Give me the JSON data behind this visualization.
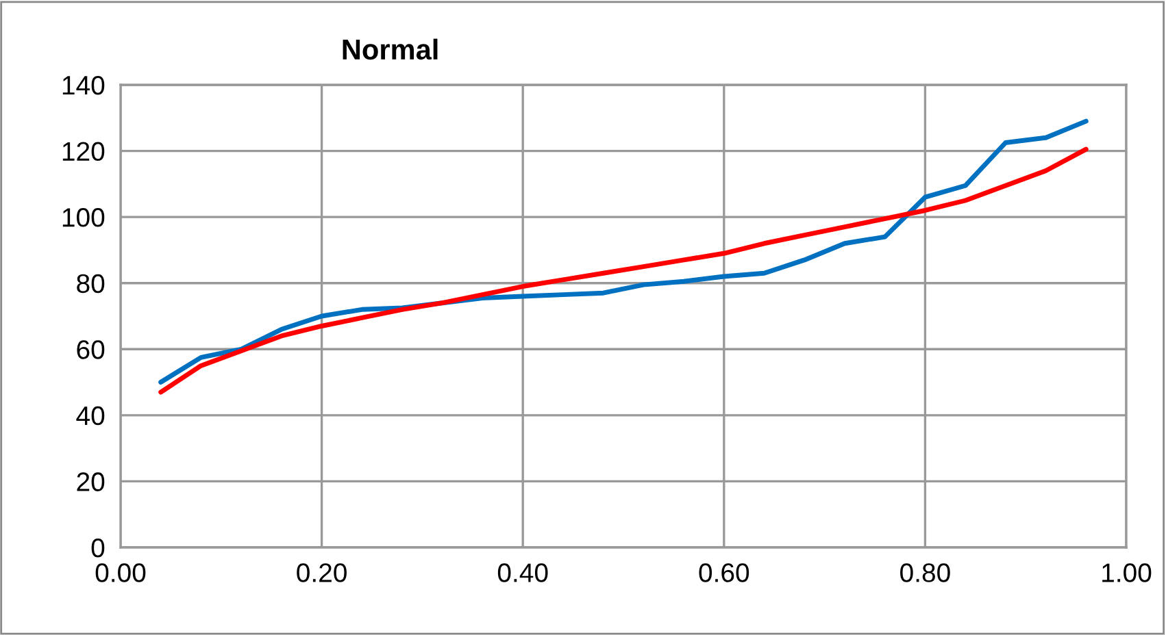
{
  "chart_data": {
    "type": "line",
    "title": "Normal",
    "x": [
      0.04,
      0.08,
      0.12,
      0.16,
      0.2,
      0.24,
      0.28,
      0.32,
      0.36,
      0.4,
      0.44,
      0.48,
      0.52,
      0.56,
      0.6,
      0.64,
      0.68,
      0.72,
      0.76,
      0.8,
      0.84,
      0.88,
      0.92,
      0.96
    ],
    "series": [
      {
        "color": "#0070c0",
        "values": [
          50,
          57.5,
          60,
          66,
          70,
          72,
          72.5,
          74,
          75.5,
          76,
          76.5,
          77,
          79.5,
          80.5,
          82,
          83,
          87,
          92,
          94,
          106,
          109.5,
          122.5,
          124,
          129
        ]
      },
      {
        "color": "#ff0000",
        "values": [
          47,
          55,
          59.5,
          64,
          67,
          69.5,
          72,
          74,
          76.5,
          79,
          81,
          83,
          85,
          87,
          89,
          92,
          94.5,
          97,
          99.5,
          102,
          105,
          109.5,
          114,
          120.5
        ]
      }
    ],
    "xlim": [
      0,
      1
    ],
    "xticks": [
      {
        "value": 0,
        "label": "0.00"
      },
      {
        "value": 0.2,
        "label": "0.20"
      },
      {
        "value": 0.4,
        "label": "0.40"
      },
      {
        "value": 0.6,
        "label": "0.60"
      },
      {
        "value": 0.8,
        "label": "0.80"
      },
      {
        "value": 1,
        "label": "1.00"
      }
    ],
    "ylim": [
      0,
      140
    ],
    "yticks": [
      0,
      20,
      40,
      60,
      80,
      100,
      120,
      140
    ],
    "grid": true,
    "legend": false,
    "marker": "none",
    "line_style": "solid"
  }
}
